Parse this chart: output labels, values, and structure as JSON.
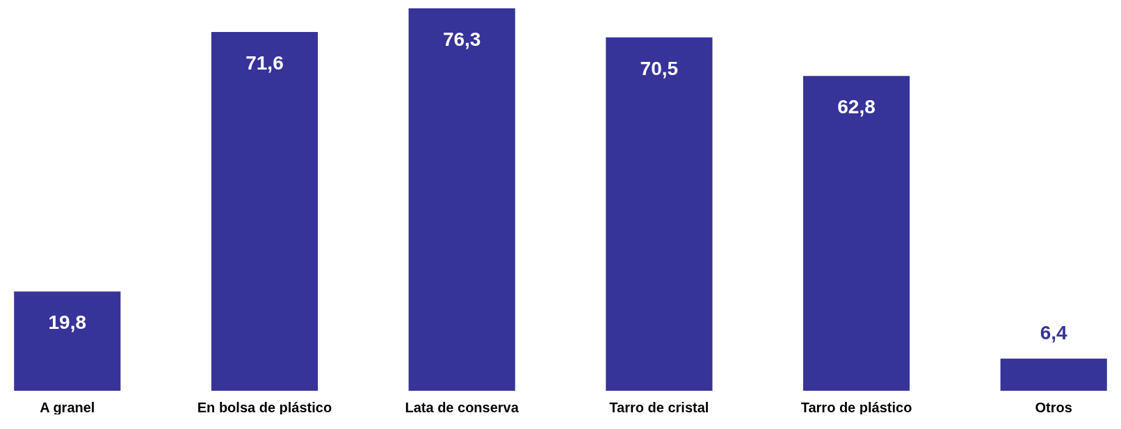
{
  "chart_data": {
    "type": "bar",
    "categories": [
      "A granel",
      "En bolsa de plástico",
      "Lata de conserva",
      "Tarro de cristal",
      "Tarro de plástico",
      "Otros"
    ],
    "values": [
      19.8,
      71.6,
      76.3,
      70.5,
      62.8,
      6.4
    ],
    "value_labels": [
      "19,8",
      "71,6",
      "76,3",
      "70,5",
      "62,8",
      "6,4"
    ],
    "color": "#363499"
  }
}
